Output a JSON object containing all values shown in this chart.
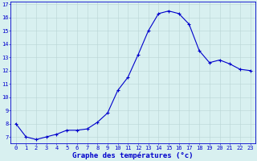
{
  "hours": [
    0,
    1,
    2,
    3,
    4,
    5,
    6,
    7,
    8,
    9,
    10,
    11,
    12,
    13,
    14,
    15,
    16,
    17,
    18,
    19,
    20,
    21,
    22,
    23
  ],
  "temps": [
    8.0,
    7.0,
    6.8,
    7.0,
    7.2,
    7.5,
    7.5,
    7.6,
    8.1,
    8.8,
    10.5,
    11.5,
    13.2,
    15.0,
    16.3,
    16.5,
    16.3,
    15.5,
    13.5,
    12.6,
    12.8,
    12.5,
    12.1,
    12.0
  ],
  "line_color": "#0000cc",
  "marker": "+",
  "marker_size": 3.5,
  "marker_lw": 0.8,
  "bg_color": "#d8f0f0",
  "grid_color": "#b8d4d4",
  "xlabel": "Graphe des températures (°c)",
  "xlabel_color": "#0000cc",
  "tick_color": "#0000cc",
  "axis_color": "#0000cc",
  "xlim_min": -0.5,
  "xlim_max": 23.5,
  "ylim_min": 6.5,
  "ylim_max": 17.2,
  "yticks": [
    7,
    8,
    9,
    10,
    11,
    12,
    13,
    14,
    15,
    16,
    17
  ],
  "xticks": [
    0,
    1,
    2,
    3,
    4,
    5,
    6,
    7,
    8,
    9,
    10,
    11,
    12,
    13,
    14,
    15,
    16,
    17,
    18,
    19,
    20,
    21,
    22,
    23
  ],
  "tick_fontsize": 5.0,
  "xlabel_fontsize": 6.5,
  "xlabel_bold": true,
  "line_width": 0.8
}
